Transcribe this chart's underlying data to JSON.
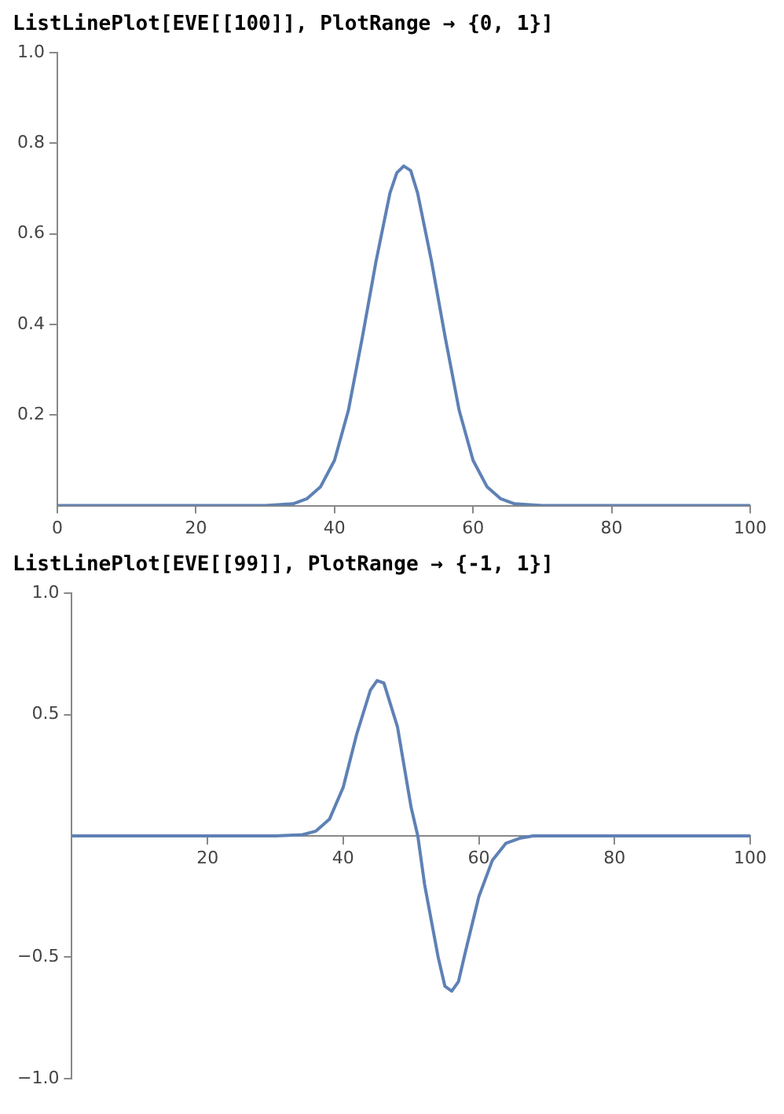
{
  "chart_data": [
    {
      "type": "line",
      "title": "ListLinePlot[EVE[[100]], PlotRange → {0, 1}]",
      "x": [
        0,
        10,
        20,
        30,
        34,
        36,
        38,
        40,
        42,
        44,
        46,
        48,
        49,
        50,
        51,
        52,
        54,
        56,
        58,
        60,
        62,
        64,
        66,
        70,
        80,
        90,
        100
      ],
      "series": [
        {
          "color": "#5e81b5",
          "values": [
            0,
            0,
            0,
            0,
            0.004,
            0.015,
            0.042,
            0.1,
            0.21,
            0.37,
            0.54,
            0.69,
            0.735,
            0.75,
            0.74,
            0.69,
            0.54,
            0.37,
            0.21,
            0.1,
            0.042,
            0.015,
            0.004,
            0,
            0,
            0,
            0
          ]
        }
      ],
      "xlim": [
        0,
        100
      ],
      "ylim": [
        0,
        1
      ],
      "xticks": [
        0,
        20,
        40,
        60,
        80,
        100
      ],
      "yticks": [
        0.2,
        0.4,
        0.6,
        0.8,
        {
          "value": 1,
          "label": "1.0"
        }
      ],
      "grid": false
    },
    {
      "type": "line",
      "title": "ListLinePlot[EVE[[99]], PlotRange → {-1, 1}]",
      "x": [
        0,
        10,
        20,
        30,
        34,
        36,
        38,
        40,
        42,
        44,
        45,
        46,
        48,
        50,
        51,
        52,
        54,
        55,
        56,
        57,
        58,
        60,
        62,
        64,
        66,
        68,
        80,
        90,
        100
      ],
      "series": [
        {
          "color": "#5e81b5",
          "values": [
            0,
            0,
            0,
            0,
            0.005,
            0.02,
            0.07,
            0.2,
            0.42,
            0.6,
            0.64,
            0.63,
            0.45,
            0.12,
            0,
            -0.2,
            -0.5,
            -0.62,
            -0.64,
            -0.6,
            -0.48,
            -0.25,
            -0.1,
            -0.03,
            -0.01,
            0,
            0,
            0,
            0
          ]
        }
      ],
      "xlim": [
        0,
        100
      ],
      "ylim": [
        -1,
        1
      ],
      "xticks": [
        20,
        40,
        60,
        80,
        100
      ],
      "yticks": [
        {
          "value": -1,
          "label": "−1.0"
        },
        {
          "value": -0.5,
          "label": "−0.5"
        },
        0.5,
        {
          "value": 1,
          "label": "1.0"
        }
      ],
      "grid": false
    }
  ]
}
